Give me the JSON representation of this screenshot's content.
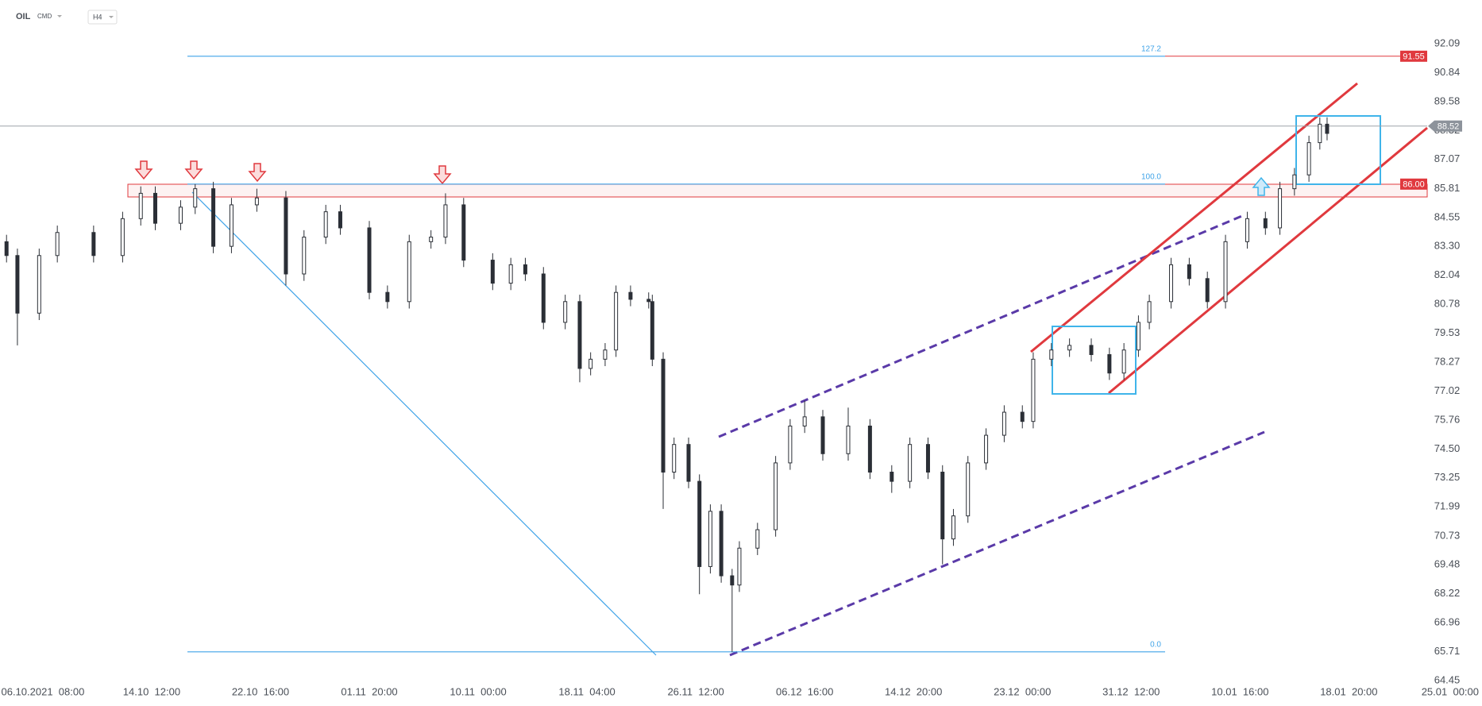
{
  "chart_data": {
    "type": "candlestick",
    "symbol": "OIL",
    "market": "CMD",
    "interval": "H4",
    "x": [
      -10,
      -7,
      -1,
      4,
      14,
      22,
      27,
      31,
      38,
      42,
      47,
      52,
      59,
      67,
      72,
      78,
      82,
      90,
      95,
      101,
      107,
      111,
      116,
      124,
      129,
      133,
      138,
      144,
      148,
      151,
      155,
      158,
      162,
      167,
      168,
      171,
      174,
      178,
      181,
      184,
      187,
      190,
      192,
      197,
      202,
      206,
      210,
      215,
      222,
      228,
      234,
      239,
      244,
      248,
      251,
      255,
      260,
      265,
      270,
      273,
      278,
      283,
      289,
      294,
      298,
      302,
      305,
      311,
      316,
      321,
      326,
      332,
      337,
      341,
      345,
      349,
      352,
      354
    ],
    "open": [
      83.5,
      82.9,
      80.4,
      82.9,
      83.9,
      82.9,
      84.5,
      85.6,
      84.3,
      85.0,
      85.8,
      83.3,
      85.1,
      85.4,
      82.1,
      83.7,
      84.8,
      84.1,
      81.3,
      80.9,
      83.5,
      83.7,
      85.1,
      82.7,
      81.7,
      82.5,
      82.1,
      80.0,
      80.9,
      78.0,
      78.4,
      78.8,
      81.3,
      81.0,
      80.9,
      78.4,
      73.5,
      74.7,
      73.1,
      69.4,
      71.8,
      69.0,
      68.6,
      70.2,
      71.0,
      73.9,
      75.5,
      75.9,
      74.3,
      75.5,
      73.5,
      73.1,
      74.7,
      73.5,
      70.6,
      71.6,
      73.9,
      75.1,
      76.1,
      75.7,
      78.4,
      78.8,
      79.0,
      78.6,
      77.8,
      78.8,
      80.0,
      80.9,
      82.5,
      81.9,
      80.9,
      83.5,
      84.5,
      84.1,
      85.8,
      86.4,
      87.8,
      88.6
    ],
    "high": [
      83.8,
      83.2,
      83.2,
      84.2,
      84.2,
      84.8,
      85.9,
      85.9,
      85.3,
      86.0,
      86.1,
      85.4,
      85.8,
      85.7,
      84.0,
      85.1,
      85.1,
      84.4,
      81.6,
      83.8,
      84.0,
      85.6,
      85.4,
      83.0,
      82.8,
      82.8,
      82.4,
      81.2,
      81.2,
      78.7,
      79.1,
      81.6,
      81.6,
      81.3,
      81.2,
      78.7,
      75.0,
      75.0,
      73.4,
      72.1,
      72.1,
      69.3,
      70.5,
      71.3,
      74.2,
      75.8,
      76.6,
      76.2,
      76.3,
      75.8,
      73.8,
      75.0,
      75.0,
      73.8,
      71.9,
      74.2,
      75.4,
      76.4,
      76.4,
      78.7,
      79.1,
      79.3,
      79.3,
      78.9,
      79.1,
      80.3,
      81.2,
      82.8,
      82.8,
      82.2,
      83.8,
      84.8,
      84.8,
      86.1,
      86.7,
      88.1,
      88.9,
      88.9
    ],
    "low": [
      82.6,
      79.0,
      80.1,
      82.6,
      82.6,
      82.6,
      84.2,
      84.0,
      84.0,
      84.7,
      83.0,
      83.0,
      84.8,
      81.6,
      81.8,
      83.4,
      83.8,
      81.0,
      80.6,
      80.6,
      83.2,
      83.4,
      82.4,
      81.4,
      81.4,
      81.8,
      79.7,
      79.7,
      77.4,
      77.7,
      78.1,
      78.5,
      80.7,
      80.6,
      78.1,
      71.9,
      73.2,
      72.8,
      68.2,
      69.1,
      68.7,
      65.7,
      68.3,
      69.9,
      70.7,
      73.6,
      75.2,
      74.0,
      74.0,
      73.2,
      72.6,
      72.8,
      73.2,
      69.5,
      70.3,
      71.3,
      73.6,
      74.8,
      75.4,
      75.4,
      78.1,
      78.5,
      78.3,
      77.5,
      77.5,
      78.5,
      79.7,
      80.6,
      81.6,
      80.6,
      80.6,
      83.2,
      83.8,
      83.8,
      85.5,
      86.1,
      87.5,
      87.9
    ],
    "close": [
      82.9,
      80.4,
      82.9,
      83.9,
      82.9,
      84.5,
      85.6,
      84.3,
      85.0,
      85.8,
      83.3,
      85.1,
      85.4,
      82.1,
      83.7,
      84.8,
      84.1,
      81.3,
      80.9,
      83.5,
      83.7,
      85.1,
      82.7,
      81.7,
      82.5,
      82.1,
      80.0,
      80.9,
      78.0,
      78.4,
      78.8,
      81.3,
      81.0,
      80.9,
      78.4,
      73.5,
      74.7,
      73.1,
      69.4,
      71.8,
      69.0,
      68.6,
      70.2,
      71.0,
      73.9,
      75.5,
      75.9,
      74.3,
      75.5,
      73.5,
      73.1,
      74.7,
      73.5,
      70.6,
      71.6,
      73.9,
      75.1,
      76.1,
      75.7,
      78.4,
      78.8,
      79.0,
      78.6,
      77.8,
      78.8,
      80.0,
      80.9,
      82.5,
      81.9,
      80.9,
      83.5,
      84.5,
      84.1,
      85.8,
      86.4,
      87.8,
      88.6,
      88.2
    ],
    "up_color": "#ffffff",
    "down_color": "#2b2f36",
    "grid": false,
    "xlim": [
      -11.8,
      396.7
    ],
    "xticks": [
      {
        "value": 0,
        "label": "06.10.2021  08:00"
      },
      {
        "value": 30,
        "label": "14.10  12:00"
      },
      {
        "value": 60,
        "label": "22.10  16:00"
      },
      {
        "value": 90,
        "label": "01.11  20:00"
      },
      {
        "value": 120,
        "label": "10.11  00:00"
      },
      {
        "value": 150,
        "label": "18.11  04:00"
      },
      {
        "value": 180,
        "label": "26.11  12:00"
      },
      {
        "value": 210,
        "label": "06.12  16:00"
      },
      {
        "value": 240,
        "label": "14.12  20:00"
      },
      {
        "value": 270,
        "label": "23.12  00:00"
      },
      {
        "value": 300,
        "label": "31.12  12:00"
      },
      {
        "value": 330,
        "label": "10.01  16:00"
      },
      {
        "value": 360,
        "label": "18.01  20:00"
      },
      {
        "value": 390,
        "label": "25.01  00:00"
      }
    ],
    "ylim": [
      64.28,
      93.99
    ],
    "yticks": [
      92.09,
      90.84,
      89.58,
      88.32,
      87.07,
      85.81,
      84.55,
      {
        "value": 83.3,
        "label": "83.30"
      },
      82.04,
      80.78,
      79.53,
      78.27,
      77.02,
      75.76,
      {
        "value": 74.5,
        "label": "74.50"
      },
      73.25,
      71.99,
      70.73,
      69.48,
      68.22,
      66.96,
      65.71,
      64.45
    ],
    "fib_levels": [
      {
        "label": "127.2",
        "value": 91.55
      },
      {
        "label": "100.0",
        "value": 86
      },
      {
        "label": "0.0",
        "value": 65.7
      }
    ],
    "price_tags": [
      {
        "value": 91.55,
        "label": "91.55",
        "color": "#e0393e"
      },
      {
        "value": 88.52,
        "label": "88.52",
        "color": "#8d939b"
      },
      {
        "value": 86,
        "label": "86.00",
        "color": "#e0393e"
      }
    ]
  }
}
